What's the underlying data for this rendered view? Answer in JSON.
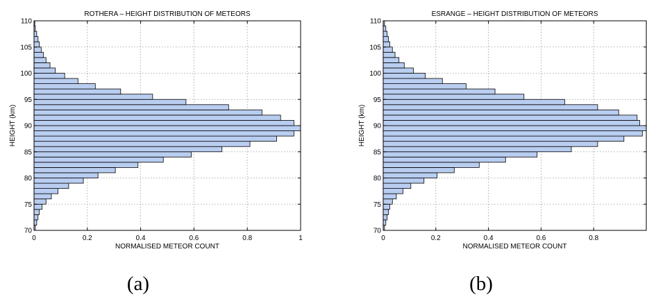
{
  "captions": [
    "(a)",
    "(b)"
  ],
  "chart_data": [
    {
      "type": "bar",
      "orientation": "horizontal",
      "title": "ROTHERA – HEIGHT DISTRIBUTION OF METEORS",
      "xlabel": "NORMALISED METEOR COUNT",
      "ylabel": "HEIGHT (km)",
      "xlim": [
        0,
        1
      ],
      "ylim": [
        70,
        110
      ],
      "xticks": [
        0,
        0.2,
        0.4,
        0.6,
        0.8,
        1
      ],
      "xtick_labels": [
        "0",
        "0.2",
        "0.4",
        "0.6",
        "0.8",
        "1"
      ],
      "yticks": [
        70,
        75,
        80,
        85,
        90,
        95,
        100,
        105,
        110
      ],
      "ytick_labels": [
        "70",
        "75",
        "80",
        "85",
        "90",
        "95",
        "100",
        "105",
        "110"
      ],
      "grid": true,
      "bin_width_km": 1,
      "heights": [
        70,
        71,
        72,
        73,
        74,
        75,
        76,
        77,
        78,
        79,
        80,
        81,
        82,
        83,
        84,
        85,
        86,
        87,
        88,
        89,
        90,
        91,
        92,
        93,
        94,
        95,
        96,
        97,
        98,
        99,
        100,
        101,
        102,
        103,
        104,
        105,
        106,
        107,
        108,
        109
      ],
      "values": [
        0.005,
        0.01,
        0.015,
        0.02,
        0.03,
        0.045,
        0.065,
        0.09,
        0.13,
        0.185,
        0.24,
        0.305,
        0.39,
        0.485,
        0.59,
        0.705,
        0.81,
        0.91,
        0.975,
        1.0,
        0.975,
        0.925,
        0.855,
        0.73,
        0.57,
        0.445,
        0.325,
        0.23,
        0.165,
        0.115,
        0.08,
        0.06,
        0.045,
        0.035,
        0.027,
        0.02,
        0.015,
        0.01,
        0.005,
        0.003
      ]
    },
    {
      "type": "bar",
      "orientation": "horizontal",
      "title": "ESRANGE – HEIGHT DISTRIBUTION OF METEORS",
      "xlabel": "NORMALISED METEOR COUNT",
      "ylabel": "HEIGHT (km)",
      "xlim": [
        0,
        1
      ],
      "ylim": [
        70,
        110
      ],
      "xticks": [
        0,
        0.2,
        0.4,
        0.6,
        0.8
      ],
      "xtick_labels": [
        "0",
        "0.2",
        "0.4",
        "0.6",
        "0.8"
      ],
      "yticks": [
        70,
        75,
        80,
        85,
        90,
        95,
        100,
        105,
        110
      ],
      "ytick_labels": [
        "70",
        "75",
        "80",
        "85",
        "90",
        "95",
        "100",
        "105",
        "110"
      ],
      "grid": true,
      "bin_width_km": 1,
      "heights": [
        70,
        71,
        72,
        73,
        74,
        75,
        76,
        77,
        78,
        79,
        80,
        81,
        82,
        83,
        84,
        85,
        86,
        87,
        88,
        89,
        90,
        91,
        92,
        93,
        94,
        95,
        96,
        97,
        98,
        99,
        100,
        101,
        102,
        103,
        104,
        105,
        106,
        107,
        108,
        109
      ],
      "values": [
        0.005,
        0.01,
        0.015,
        0.02,
        0.025,
        0.035,
        0.05,
        0.075,
        0.105,
        0.155,
        0.205,
        0.27,
        0.365,
        0.465,
        0.585,
        0.715,
        0.815,
        0.915,
        0.985,
        1.0,
        0.975,
        0.965,
        0.895,
        0.815,
        0.69,
        0.535,
        0.425,
        0.315,
        0.225,
        0.16,
        0.115,
        0.08,
        0.06,
        0.045,
        0.035,
        0.025,
        0.02,
        0.015,
        0.01,
        0.005
      ]
    }
  ]
}
